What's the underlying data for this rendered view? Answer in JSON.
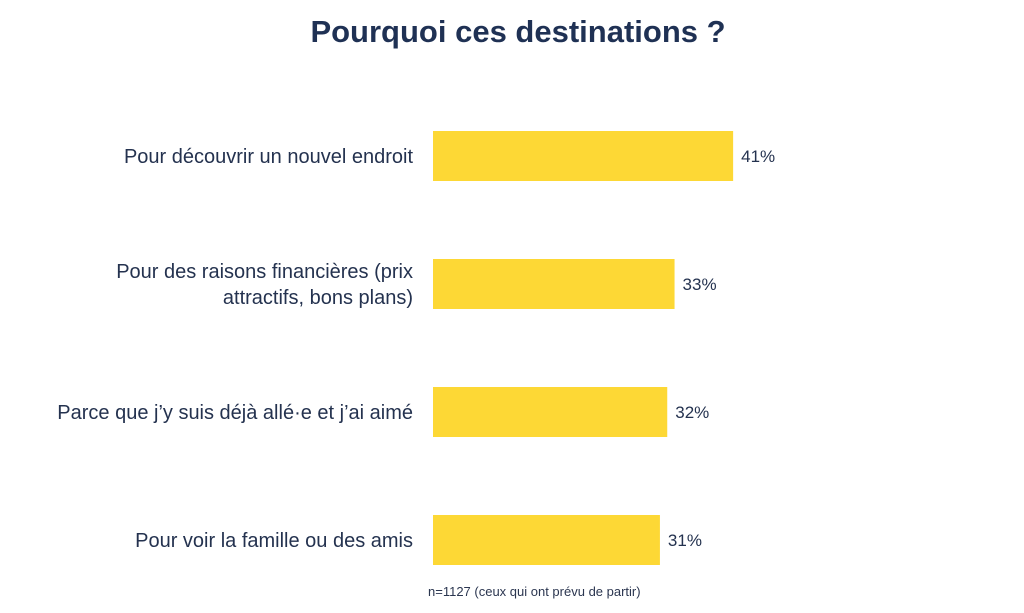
{
  "chart_data": {
    "type": "bar",
    "orientation": "horizontal",
    "title": "Pourquoi ces destinations ?",
    "categories": [
      [
        "Pour découvrir un nouvel endroit"
      ],
      [
        "Pour des raisons financières (prix",
        "attractifs, bons plans)"
      ],
      [
        "Parce que j’y suis déjà allé·e et j’ai aimé"
      ],
      [
        "Pour voir la famille ou des amis"
      ]
    ],
    "values": [
      41,
      33,
      32,
      31
    ],
    "value_labels": [
      "41%",
      "33%",
      "32%",
      "31%"
    ],
    "unit": "%",
    "xlim": [
      0,
      100
    ],
    "grid": false,
    "legend": "none",
    "bar_color": "#fdd835",
    "note": "n=1127 (ceux qui ont prévu de partir)"
  }
}
